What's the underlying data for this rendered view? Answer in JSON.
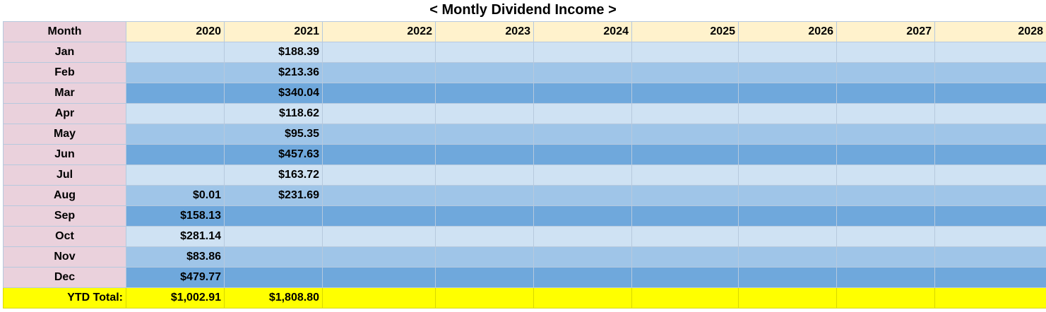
{
  "title": "< Montly Dividend Income >",
  "colors": {
    "month_col": "#ead1dc",
    "header_row": "#fff2cc",
    "shade_light": "#cfe2f3",
    "shade_mid": "#9fc5e8",
    "shade_dark": "#6fa8dc",
    "total_row": "#ffff00"
  },
  "table": {
    "month_header": "Month",
    "years": [
      "2020",
      "2021",
      "2022",
      "2023",
      "2024",
      "2025",
      "2026",
      "2027",
      "2028"
    ],
    "rows": [
      {
        "month": "Jan",
        "values": [
          "",
          "$188.39",
          "",
          "",
          "",
          "",
          "",
          "",
          ""
        ]
      },
      {
        "month": "Feb",
        "values": [
          "",
          "$213.36",
          "",
          "",
          "",
          "",
          "",
          "",
          ""
        ]
      },
      {
        "month": "Mar",
        "values": [
          "",
          "$340.04",
          "",
          "",
          "",
          "",
          "",
          "",
          ""
        ]
      },
      {
        "month": "Apr",
        "values": [
          "",
          "$118.62",
          "",
          "",
          "",
          "",
          "",
          "",
          ""
        ]
      },
      {
        "month": "May",
        "values": [
          "",
          "$95.35",
          "",
          "",
          "",
          "",
          "",
          "",
          ""
        ]
      },
      {
        "month": "Jun",
        "values": [
          "",
          "$457.63",
          "",
          "",
          "",
          "",
          "",
          "",
          ""
        ]
      },
      {
        "month": "Jul",
        "values": [
          "",
          "$163.72",
          "",
          "",
          "",
          "",
          "",
          "",
          ""
        ]
      },
      {
        "month": "Aug",
        "values": [
          "$0.01",
          "$231.69",
          "",
          "",
          "",
          "",
          "",
          "",
          ""
        ]
      },
      {
        "month": "Sep",
        "values": [
          "$158.13",
          "",
          "",
          "",
          "",
          "",
          "",
          "",
          ""
        ]
      },
      {
        "month": "Oct",
        "values": [
          "$281.14",
          "",
          "",
          "",
          "",
          "",
          "",
          "",
          ""
        ]
      },
      {
        "month": "Nov",
        "values": [
          "$83.86",
          "",
          "",
          "",
          "",
          "",
          "",
          "",
          ""
        ]
      },
      {
        "month": "Dec",
        "values": [
          "$479.77",
          "",
          "",
          "",
          "",
          "",
          "",
          "",
          ""
        ]
      }
    ],
    "total": {
      "label": "YTD Total:",
      "values": [
        "$1,002.91",
        "$1,808.80",
        "",
        "",
        "",
        "",
        "",
        "",
        ""
      ]
    }
  }
}
